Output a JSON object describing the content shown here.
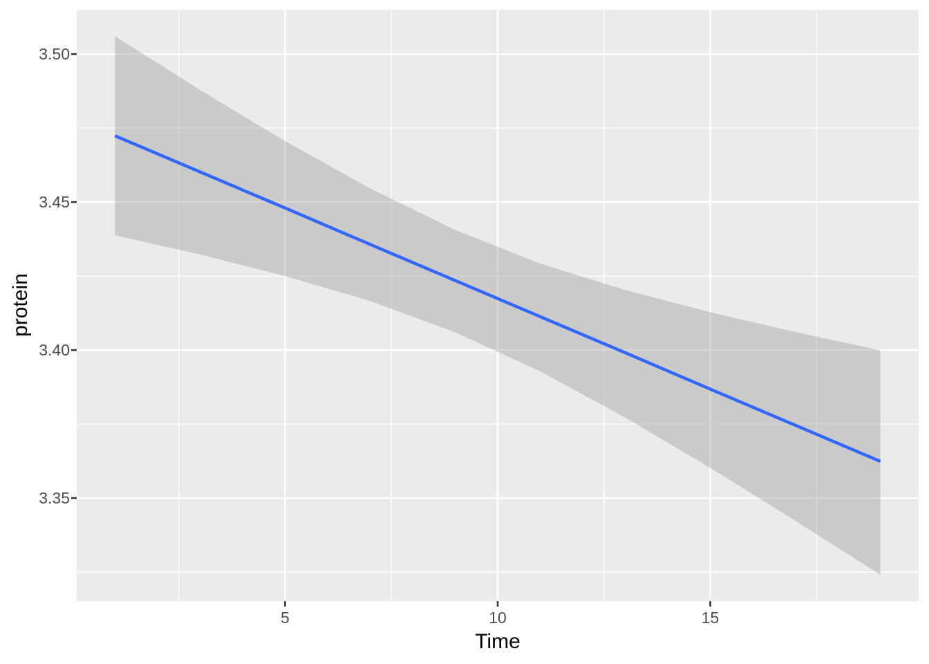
{
  "colors": {
    "outer_bg": "#FFFFFF",
    "panel_bg": "#EBEBEB",
    "grid": "#FFFFFF",
    "ribbon_fill": "#999999",
    "ribbon_opacity": 0.4,
    "line": "#3366FF",
    "tick_mark": "#333333",
    "tick_label": "#4D4D4D",
    "axis_title": "#000000"
  },
  "chart_data": {
    "type": "line",
    "title": "",
    "xlabel": "Time",
    "ylabel": "protein",
    "xlim": [
      0.1,
      19.9
    ],
    "ylim": [
      3.3152,
      3.515
    ],
    "grid": "on",
    "legend": "none",
    "x_ticks": [
      {
        "value": 5,
        "label": "5"
      },
      {
        "value": 10,
        "label": "10"
      },
      {
        "value": 15,
        "label": "15"
      }
    ],
    "x_minor": [
      2.5,
      7.5,
      12.5,
      17.5
    ],
    "y_ticks": [
      {
        "value": 3.35,
        "label": "3.35"
      },
      {
        "value": 3.4,
        "label": "3.40"
      },
      {
        "value": 3.45,
        "label": "3.45"
      },
      {
        "value": 3.5,
        "label": "3.50"
      }
    ],
    "y_minor": [
      3.325,
      3.375,
      3.425,
      3.475
    ],
    "x": [
      1,
      3,
      5,
      7,
      9,
      11,
      13,
      15,
      17,
      19
    ],
    "series": [
      {
        "name": "fit",
        "values": [
          3.4724,
          3.4602,
          3.448,
          3.4357,
          3.4235,
          3.4113,
          3.3991,
          3.3868,
          3.3746,
          3.3624
        ]
      },
      {
        "name": "ci_upper",
        "values": [
          3.506,
          3.4879,
          3.4706,
          3.4546,
          3.4406,
          3.4292,
          3.4203,
          3.4128,
          3.4061,
          3.3999
        ]
      },
      {
        "name": "ci_lower",
        "values": [
          3.4388,
          3.4323,
          3.425,
          3.4166,
          3.406,
          3.3928,
          3.3772,
          3.3602,
          3.3423,
          3.3241
        ]
      }
    ]
  }
}
